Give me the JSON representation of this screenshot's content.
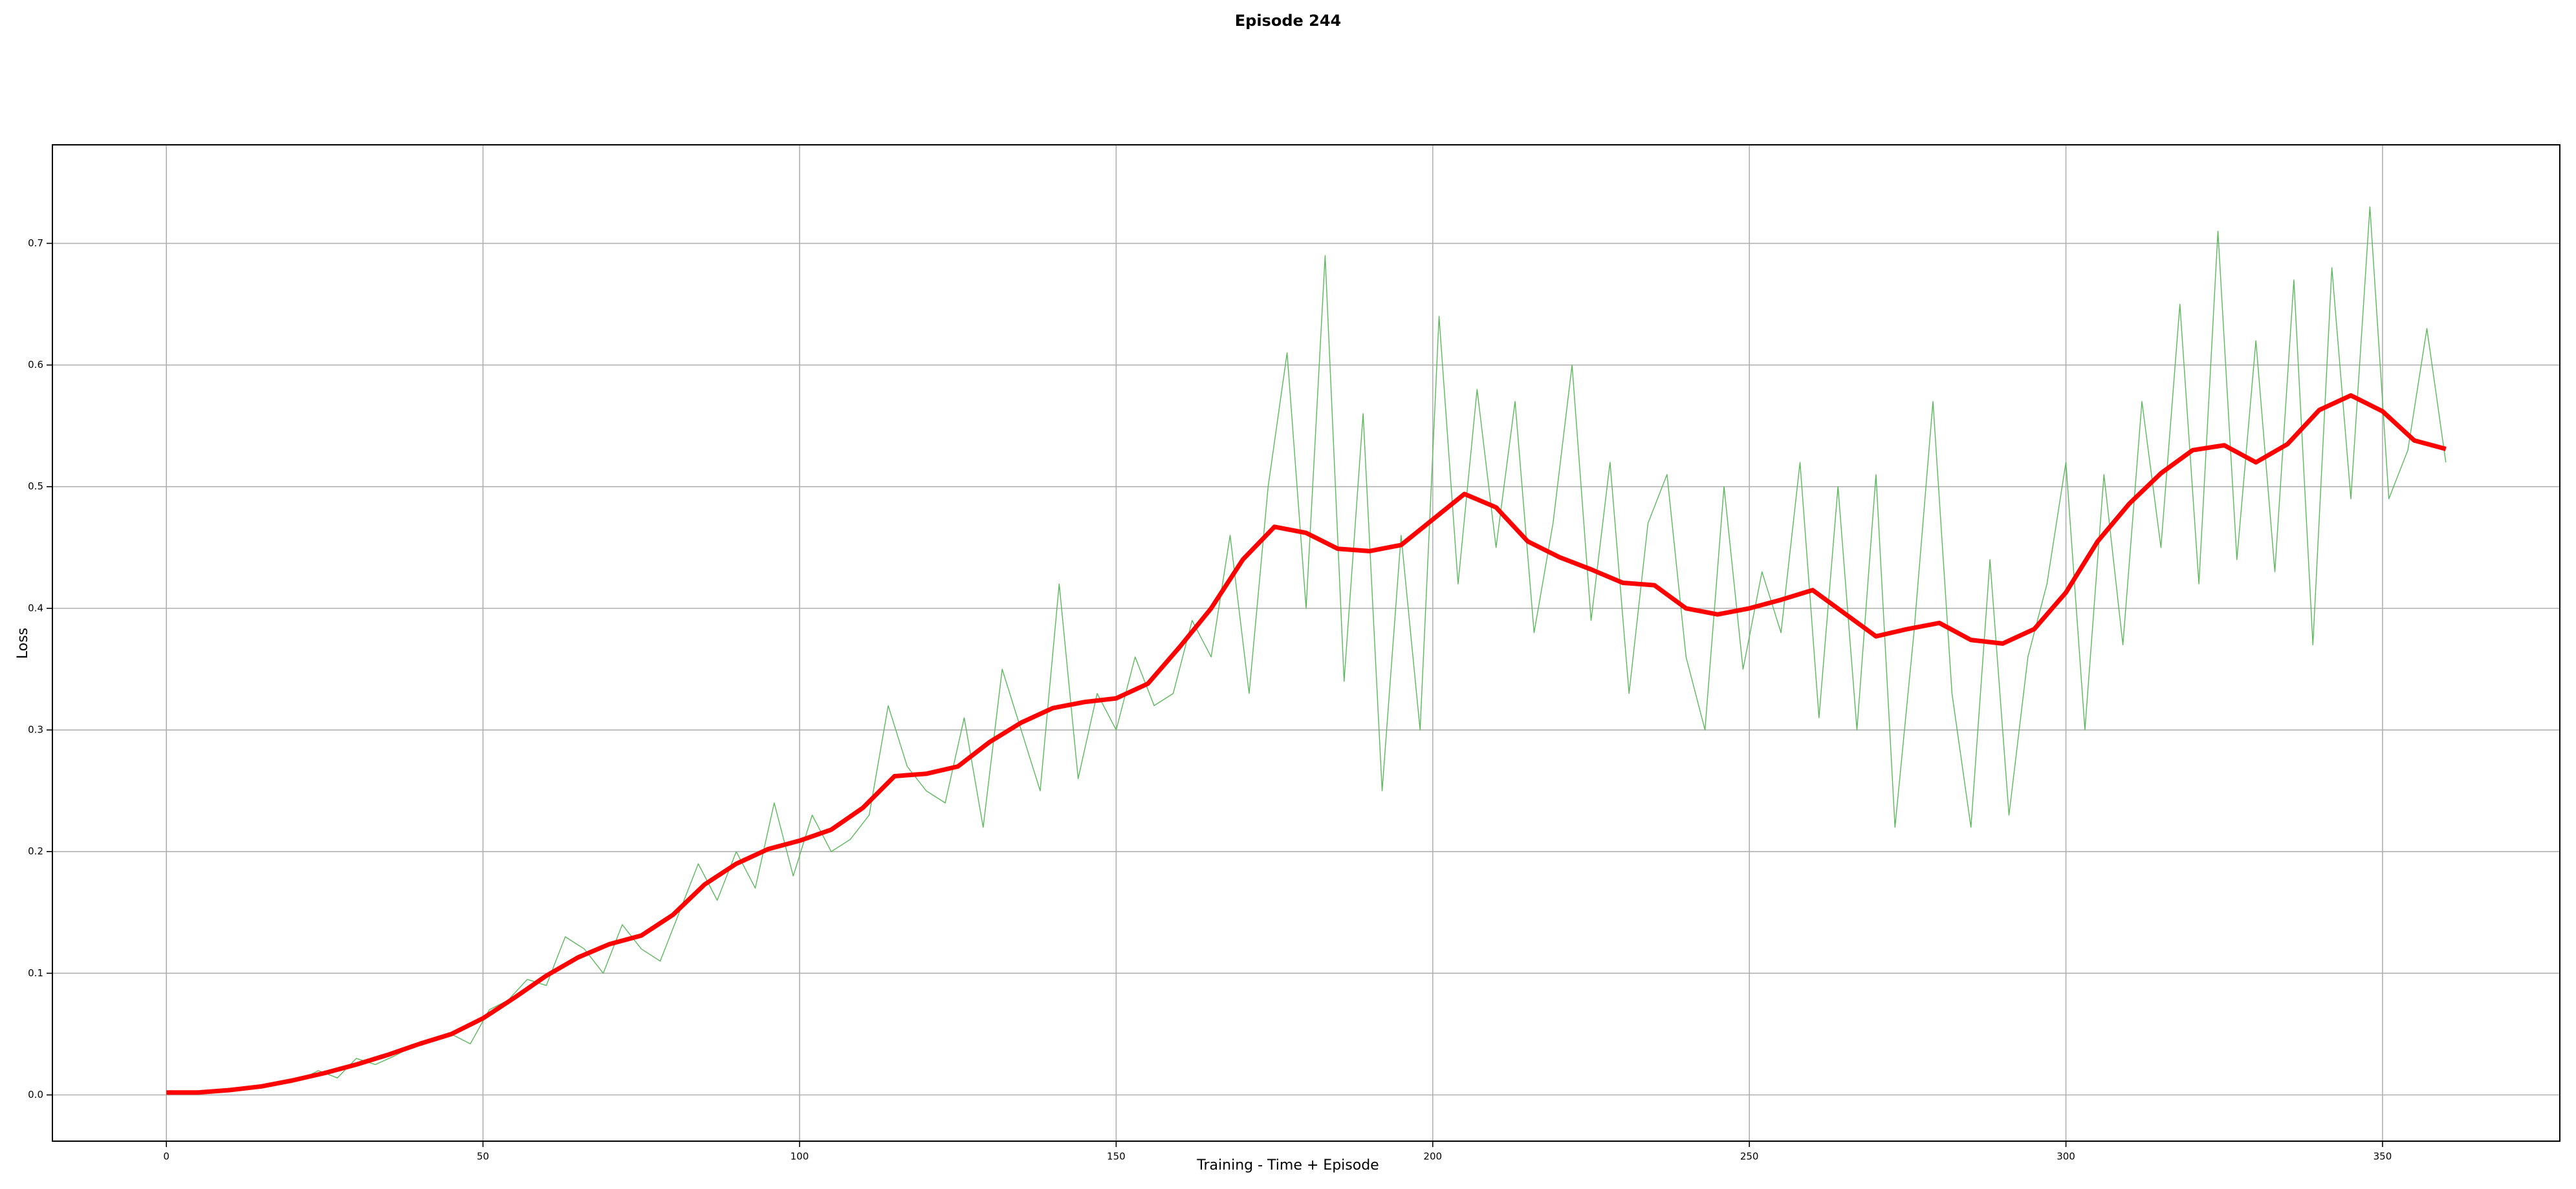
{
  "chart_data": {
    "type": "line",
    "title": "Episode 244",
    "x_label": "Training - Time + Episode",
    "y_label": "Loss",
    "xlim": [
      -18,
      378
    ],
    "ylim": [
      -0.038,
      0.781
    ],
    "xticks": [
      0,
      50,
      100,
      150,
      200,
      250,
      300,
      350
    ],
    "yticks": [
      {
        "value": 0,
        "label": "0.0"
      },
      0.1,
      0.2,
      0.3,
      0.4,
      0.5,
      0.6,
      0.7
    ],
    "grid": true,
    "series": [
      {
        "color": "#5cb85c",
        "x": [
          0,
          3,
          6,
          9,
          12,
          15,
          18,
          21,
          24,
          27,
          30,
          33,
          36,
          39,
          42,
          45,
          48,
          51,
          54,
          57,
          60,
          63,
          66,
          69,
          72,
          75,
          78,
          81,
          84,
          87,
          90,
          93,
          96,
          99,
          102,
          105,
          108,
          111,
          114,
          117,
          120,
          123,
          126,
          129,
          132,
          135,
          138,
          141,
          144,
          147,
          150,
          153,
          156,
          159,
          162,
          165,
          168,
          171,
          174,
          177,
          180,
          183,
          186,
          189,
          192,
          195,
          198,
          201,
          204,
          207,
          210,
          213,
          216,
          219,
          222,
          225,
          228,
          231,
          234,
          237,
          240,
          243,
          246,
          249,
          252,
          255,
          258,
          261,
          264,
          267,
          270,
          273,
          276,
          279,
          282,
          285,
          288,
          291,
          294,
          297,
          300,
          303,
          306,
          309,
          312,
          315,
          318,
          321,
          324,
          327,
          330,
          333,
          336,
          339,
          342,
          345,
          348,
          351,
          354,
          357,
          360
        ],
        "values": [
          0.002,
          0.003,
          0.003,
          0.005,
          0.006,
          0.007,
          0.01,
          0.012,
          0.02,
          0.014,
          0.03,
          0.025,
          0.032,
          0.04,
          0.045,
          0.05,
          0.042,
          0.07,
          0.078,
          0.095,
          0.09,
          0.13,
          0.12,
          0.1,
          0.14,
          0.12,
          0.11,
          0.15,
          0.19,
          0.16,
          0.2,
          0.17,
          0.24,
          0.18,
          0.23,
          0.2,
          0.21,
          0.23,
          0.32,
          0.27,
          0.25,
          0.24,
          0.31,
          0.22,
          0.35,
          0.3,
          0.25,
          0.42,
          0.26,
          0.33,
          0.3,
          0.36,
          0.32,
          0.33,
          0.39,
          0.36,
          0.46,
          0.33,
          0.5,
          0.61,
          0.4,
          0.69,
          0.34,
          0.56,
          0.25,
          0.46,
          0.3,
          0.64,
          0.42,
          0.58,
          0.45,
          0.57,
          0.38,
          0.47,
          0.6,
          0.39,
          0.52,
          0.33,
          0.47,
          0.51,
          0.36,
          0.3,
          0.5,
          0.35,
          0.43,
          0.38,
          0.52,
          0.31,
          0.5,
          0.3,
          0.51,
          0.22,
          0.38,
          0.57,
          0.33,
          0.22,
          0.44,
          0.23,
          0.36,
          0.42,
          0.52,
          0.3,
          0.51,
          0.37,
          0.57,
          0.45,
          0.65,
          0.42,
          0.71,
          0.44,
          0.62,
          0.43,
          0.67,
          0.37,
          0.68,
          0.49,
          0.73,
          0.49,
          0.53,
          0.63,
          0.52
        ]
      },
      {
        "color": "#ff0000",
        "x": [
          0,
          5,
          10,
          15,
          20,
          25,
          30,
          35,
          40,
          45,
          50,
          55,
          60,
          65,
          70,
          75,
          80,
          85,
          90,
          95,
          100,
          105,
          110,
          115,
          120,
          125,
          130,
          135,
          140,
          145,
          150,
          155,
          160,
          165,
          170,
          175,
          180,
          185,
          190,
          195,
          200,
          205,
          210,
          215,
          220,
          225,
          230,
          235,
          240,
          245,
          250,
          255,
          260,
          265,
          270,
          275,
          280,
          285,
          290,
          295,
          300,
          305,
          310,
          315,
          320,
          325,
          330,
          335,
          340,
          345,
          350,
          355,
          360
        ],
        "values": [
          0.002,
          0.002,
          0.004,
          0.007,
          0.012,
          0.018,
          0.025,
          0.033,
          0.042,
          0.05,
          0.063,
          0.08,
          0.098,
          0.113,
          0.124,
          0.131,
          0.148,
          0.173,
          0.19,
          0.202,
          0.209,
          0.218,
          0.236,
          0.262,
          0.264,
          0.27,
          0.29,
          0.306,
          0.318,
          0.323,
          0.326,
          0.338,
          0.368,
          0.4,
          0.44,
          0.467,
          0.462,
          0.449,
          0.447,
          0.452,
          0.473,
          0.494,
          0.483,
          0.455,
          0.442,
          0.432,
          0.421,
          0.419,
          0.4,
          0.395,
          0.4,
          0.407,
          0.415,
          0.396,
          0.377,
          0.383,
          0.388,
          0.374,
          0.371,
          0.383,
          0.413,
          0.455,
          0.486,
          0.511,
          0.53,
          0.534,
          0.52,
          0.535,
          0.563,
          0.575,
          0.562,
          0.538,
          0.531
        ]
      }
    ]
  }
}
